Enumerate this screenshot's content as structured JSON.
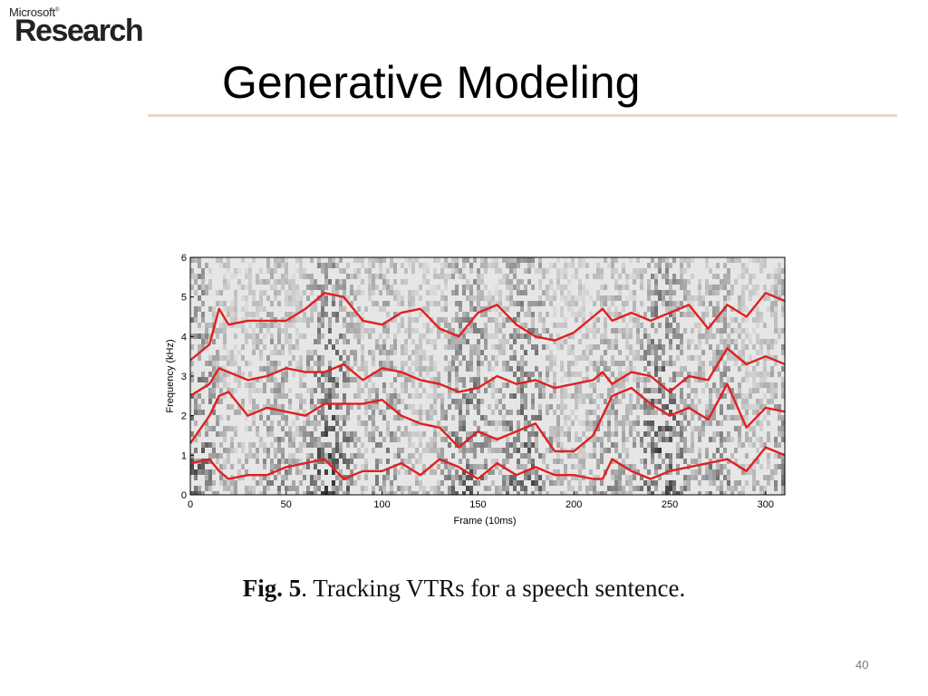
{
  "logo": {
    "brand_small": "Microsoft",
    "trademark": "®",
    "brand_large": "Research"
  },
  "slide": {
    "title": "Generative Modeling",
    "page_number": "40"
  },
  "figure": {
    "caption_label": "Fig. 5",
    "caption_text": ". Tracking VTRs for a speech sentence."
  },
  "chart_data": {
    "type": "line",
    "xlabel": "Frame (10ms)",
    "ylabel": "Frequency (kHz)",
    "xlim": [
      0,
      310
    ],
    "ylim": [
      0,
      6
    ],
    "xticks": [
      0,
      50,
      100,
      150,
      200,
      250,
      300
    ],
    "yticks": [
      0,
      1,
      2,
      3,
      4,
      5,
      6
    ],
    "background": "spectrogram (grayscale)",
    "line_color": "#e02020",
    "series": [
      {
        "x": [
          0,
          10,
          15,
          20,
          30,
          40,
          50,
          60,
          70,
          80,
          90,
          100,
          110,
          120,
          130,
          140,
          150,
          160,
          170,
          180,
          190,
          200,
          210,
          215,
          220,
          230,
          240,
          250,
          260,
          270,
          280,
          290,
          300,
          310
        ],
        "values": [
          0.8,
          0.9,
          0.6,
          0.4,
          0.5,
          0.5,
          0.7,
          0.8,
          0.9,
          0.4,
          0.6,
          0.6,
          0.8,
          0.5,
          0.9,
          0.7,
          0.4,
          0.8,
          0.5,
          0.7,
          0.5,
          0.5,
          0.4,
          0.4,
          0.9,
          0.6,
          0.4,
          0.6,
          0.7,
          0.8,
          0.9,
          0.6,
          1.2,
          1.0
        ]
      },
      {
        "x": [
          0,
          10,
          15,
          20,
          30,
          40,
          50,
          60,
          70,
          80,
          90,
          100,
          110,
          120,
          130,
          140,
          150,
          160,
          170,
          180,
          190,
          200,
          210,
          215,
          220,
          230,
          240,
          250,
          260,
          270,
          280,
          290,
          300,
          310
        ],
        "values": [
          1.3,
          2.0,
          2.5,
          2.6,
          2.0,
          2.2,
          2.1,
          2.0,
          2.3,
          2.3,
          2.3,
          2.4,
          2.0,
          1.8,
          1.7,
          1.2,
          1.6,
          1.4,
          1.6,
          1.8,
          1.1,
          1.1,
          1.5,
          2.0,
          2.5,
          2.7,
          2.3,
          2.0,
          2.2,
          1.9,
          2.8,
          1.7,
          2.2,
          2.1
        ]
      },
      {
        "x": [
          0,
          10,
          15,
          20,
          30,
          40,
          50,
          60,
          70,
          80,
          90,
          100,
          110,
          120,
          130,
          140,
          150,
          160,
          170,
          180,
          190,
          200,
          210,
          215,
          220,
          230,
          240,
          250,
          260,
          270,
          280,
          290,
          300,
          310
        ],
        "values": [
          2.5,
          2.8,
          3.2,
          3.1,
          2.9,
          3.0,
          3.2,
          3.1,
          3.1,
          3.3,
          2.9,
          3.2,
          3.1,
          2.9,
          2.8,
          2.6,
          2.7,
          3.0,
          2.8,
          2.9,
          2.7,
          2.8,
          2.9,
          3.1,
          2.8,
          3.1,
          3.0,
          2.6,
          3.0,
          2.9,
          3.7,
          3.3,
          3.5,
          3.3
        ]
      },
      {
        "x": [
          0,
          10,
          15,
          20,
          30,
          40,
          50,
          60,
          70,
          80,
          90,
          100,
          110,
          120,
          130,
          140,
          150,
          160,
          170,
          180,
          190,
          200,
          210,
          215,
          220,
          230,
          240,
          250,
          260,
          270,
          280,
          290,
          300,
          310
        ],
        "values": [
          3.4,
          3.8,
          4.7,
          4.3,
          4.4,
          4.4,
          4.4,
          4.7,
          5.1,
          5.0,
          4.4,
          4.3,
          4.6,
          4.7,
          4.2,
          4.0,
          4.6,
          4.8,
          4.3,
          4.0,
          3.9,
          4.1,
          4.5,
          4.7,
          4.4,
          4.6,
          4.4,
          4.6,
          4.8,
          4.2,
          4.8,
          4.5,
          5.1,
          4.9
        ]
      }
    ]
  }
}
